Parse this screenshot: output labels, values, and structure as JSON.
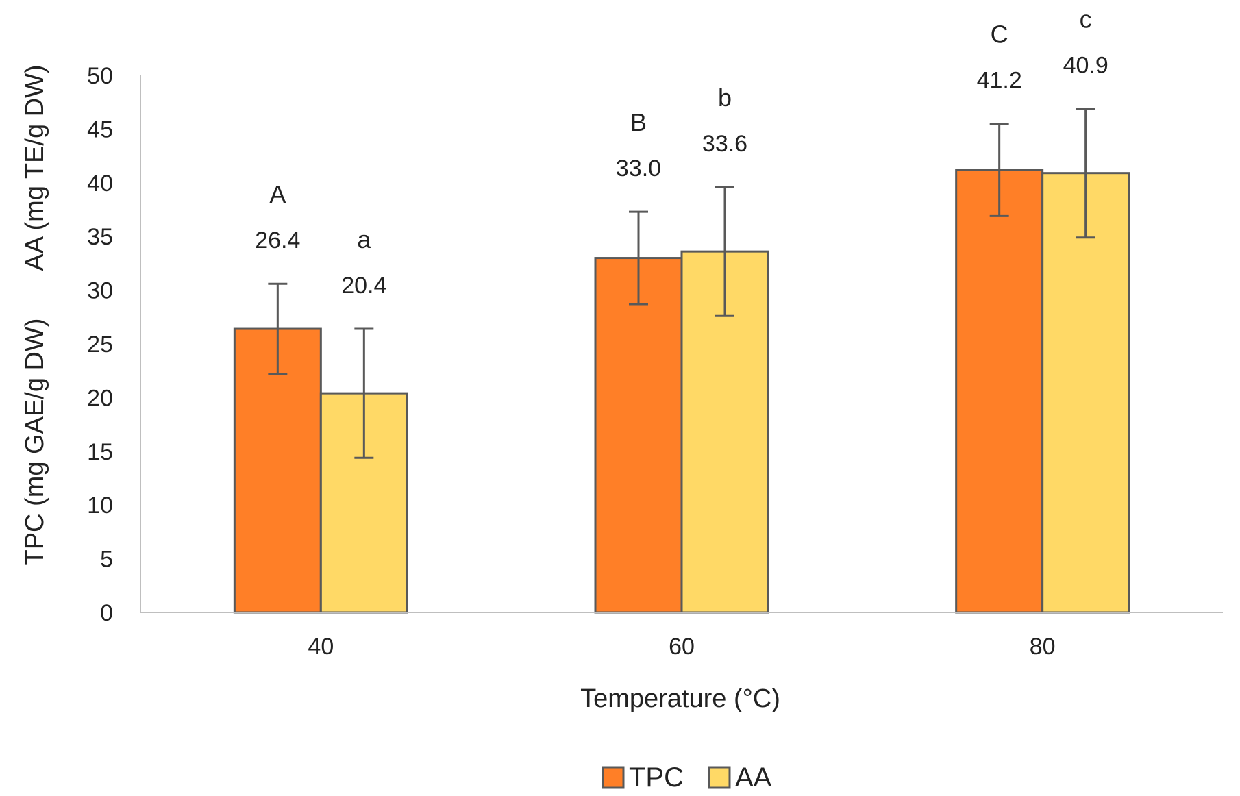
{
  "chart_data": {
    "type": "bar",
    "title": "",
    "xlabel": "Temperature (°C)",
    "ylabel_line1": "TPC (mg GAE/g DW)",
    "ylabel_line2": "AA (mg TE/g DW)",
    "ylim": [
      0,
      50
    ],
    "yticks": [
      0,
      5,
      10,
      15,
      20,
      25,
      30,
      35,
      40,
      45,
      50
    ],
    "categories": [
      "40",
      "60",
      "80"
    ],
    "grid": false,
    "legend_position": "bottom",
    "series": [
      {
        "name": "TPC",
        "color": "#FF7F27",
        "values": [
          26.4,
          33.0,
          41.2
        ],
        "value_labels": [
          "26.4",
          "33.0",
          "41.2"
        ],
        "error": [
          4.2,
          4.3,
          4.3
        ],
        "group_labels": [
          "A",
          "B",
          "C"
        ]
      },
      {
        "name": "AA",
        "color": "#FFD966",
        "values": [
          20.4,
          33.6,
          40.9
        ],
        "value_labels": [
          "20.4",
          "33.6",
          "40.9"
        ],
        "error": [
          6.0,
          6.0,
          6.0
        ],
        "group_labels": [
          "a",
          "b",
          "c"
        ]
      }
    ],
    "colors": {
      "axis": "#bfbfbf",
      "bar_border": "#595959",
      "error_bar": "#595959",
      "text": "#222222"
    }
  }
}
